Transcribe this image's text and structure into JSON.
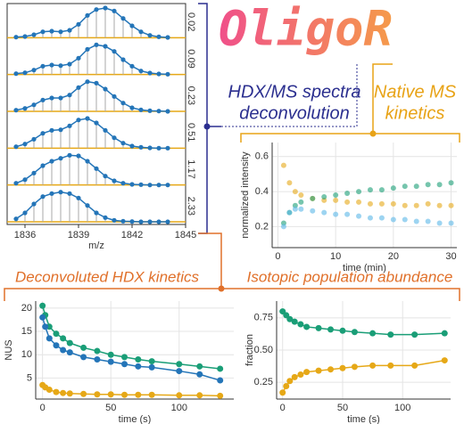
{
  "labels": {
    "title": "OligoR",
    "hdx_line1": "HDX/MS spectra",
    "hdx_line2": "deconvolution",
    "native_line1": "Native MS",
    "native_line2": "kinetics",
    "section_left": "Deconvoluted HDX kinetics",
    "section_right": "Isotopic population abundance"
  },
  "chart_data": [
    {
      "type": "spectra",
      "x_label": "m/z",
      "xlim": [
        1835,
        1845
      ],
      "xticks": [
        1836,
        1839,
        1842,
        1845
      ],
      "color": "#2475b8",
      "stem_color": "#aaaaaa",
      "x": [
        1835.5,
        1836,
        1836.5,
        1837,
        1837.5,
        1838,
        1838.5,
        1839,
        1839.5,
        1840,
        1840.5,
        1841,
        1841.5,
        1842,
        1842.5,
        1843,
        1843.5,
        1844
      ],
      "series": [
        {
          "name": "0.02",
          "values": [
            0.02,
            0.04,
            0.1,
            0.2,
            0.22,
            0.2,
            0.25,
            0.45,
            0.75,
            0.95,
            1,
            0.9,
            0.65,
            0.4,
            0.2,
            0.08,
            0.03,
            0.01
          ]
        },
        {
          "name": "0.09",
          "values": [
            0.03,
            0.06,
            0.15,
            0.28,
            0.32,
            0.3,
            0.35,
            0.55,
            0.85,
            1,
            0.95,
            0.78,
            0.5,
            0.28,
            0.12,
            0.05,
            0.02,
            0.01
          ]
        },
        {
          "name": "0.23",
          "values": [
            0.04,
            0.1,
            0.22,
            0.38,
            0.45,
            0.45,
            0.55,
            0.8,
            1,
            0.95,
            0.75,
            0.5,
            0.28,
            0.12,
            0.05,
            0.02,
            0.01,
            0
          ]
        },
        {
          "name": "0.51",
          "values": [
            0.05,
            0.14,
            0.3,
            0.5,
            0.6,
            0.62,
            0.75,
            0.95,
            1,
            0.85,
            0.6,
            0.35,
            0.17,
            0.07,
            0.03,
            0.01,
            0,
            0
          ]
        },
        {
          "name": "1.17",
          "values": [
            0.06,
            0.18,
            0.4,
            0.65,
            0.8,
            0.9,
            1,
            0.98,
            0.8,
            0.55,
            0.3,
            0.14,
            0.06,
            0.02,
            0.01,
            0,
            0,
            0
          ]
        },
        {
          "name": "2.33",
          "values": [
            0.1,
            0.3,
            0.6,
            0.85,
            0.95,
            1,
            0.95,
            0.8,
            0.55,
            0.3,
            0.14,
            0.05,
            0.02,
            0.01,
            0,
            0,
            0,
            0
          ]
        }
      ]
    },
    {
      "type": "scatter",
      "x_label": "time (min)",
      "y_label": "normalized intensity",
      "xlim": [
        -1,
        31
      ],
      "ylim": [
        0.08,
        0.68
      ],
      "xticks": [
        0,
        10,
        20,
        30
      ],
      "yticks": [
        0.2,
        0.4,
        0.6
      ],
      "grid": true,
      "x": [
        1,
        2,
        3,
        4,
        6,
        8,
        10,
        12,
        14,
        16,
        18,
        20,
        22,
        24,
        26,
        28,
        30
      ],
      "series": [
        {
          "color": "#e6a817",
          "values": [
            0.55,
            0.45,
            0.4,
            0.38,
            0.36,
            0.35,
            0.35,
            0.34,
            0.34,
            0.33,
            0.33,
            0.33,
            0.32,
            0.32,
            0.33,
            0.32,
            0.32
          ]
        },
        {
          "color": "#1a9e77",
          "values": [
            0.22,
            0.28,
            0.32,
            0.34,
            0.36,
            0.37,
            0.38,
            0.39,
            0.4,
            0.41,
            0.41,
            0.42,
            0.43,
            0.43,
            0.44,
            0.44,
            0.45
          ]
        },
        {
          "color": "#5bb8e8",
          "values": [
            0.2,
            0.28,
            0.3,
            0.3,
            0.29,
            0.28,
            0.27,
            0.27,
            0.26,
            0.25,
            0.25,
            0.24,
            0.24,
            0.23,
            0.23,
            0.22,
            0.22
          ]
        }
      ]
    },
    {
      "type": "line",
      "x_label": "time (s)",
      "y_label": "NUS",
      "xlim": [
        -5,
        140
      ],
      "ylim": [
        0.5,
        21.5
      ],
      "xticks": [
        0,
        50,
        100
      ],
      "yticks": [
        5,
        10,
        15,
        20
      ],
      "grid": true,
      "x": [
        0,
        2,
        5,
        10,
        15,
        20,
        30,
        40,
        50,
        60,
        70,
        80,
        100,
        115,
        130
      ],
      "series": [
        {
          "color": "#1a9e77",
          "values": [
            20.5,
            18.5,
            16,
            14.5,
            13.5,
            12.5,
            11.5,
            10.8,
            10,
            9.5,
            9,
            8.6,
            8,
            7.5,
            7
          ]
        },
        {
          "color": "#2475b8",
          "values": [
            18,
            16,
            13.5,
            12,
            11,
            10.5,
            9.5,
            9,
            8.5,
            8,
            7.5,
            7.3,
            6.5,
            5.8,
            4.5
          ]
        },
        {
          "color": "#e6a817",
          "values": [
            3.5,
            3,
            2.5,
            2,
            1.8,
            1.7,
            1.6,
            1.5,
            1.5,
            1.4,
            1.4,
            1.4,
            1.3,
            1.3,
            1.2
          ]
        }
      ]
    },
    {
      "type": "line",
      "x_label": "time (s)",
      "y_label": "fraction",
      "xlim": [
        -5,
        140
      ],
      "ylim": [
        0.12,
        0.88
      ],
      "xticks": [
        0,
        50,
        100
      ],
      "yticks": [
        {
          "value": 0.25,
          "label": "0.25"
        },
        {
          "value": 0.5,
          "label": "0.50"
        },
        {
          "value": 0.75,
          "label": "0.75"
        }
      ],
      "grid": true,
      "x": [
        0,
        3,
        6,
        10,
        15,
        20,
        30,
        40,
        50,
        60,
        75,
        90,
        110,
        135
      ],
      "series": [
        {
          "color": "#1a9e77",
          "values": [
            0.8,
            0.77,
            0.74,
            0.72,
            0.7,
            0.68,
            0.67,
            0.66,
            0.65,
            0.64,
            0.63,
            0.62,
            0.62,
            0.63
          ]
        },
        {
          "color": "#e6a817",
          "values": [
            0.17,
            0.22,
            0.26,
            0.29,
            0.31,
            0.33,
            0.34,
            0.35,
            0.36,
            0.37,
            0.38,
            0.38,
            0.38,
            0.42
          ]
        }
      ]
    }
  ]
}
